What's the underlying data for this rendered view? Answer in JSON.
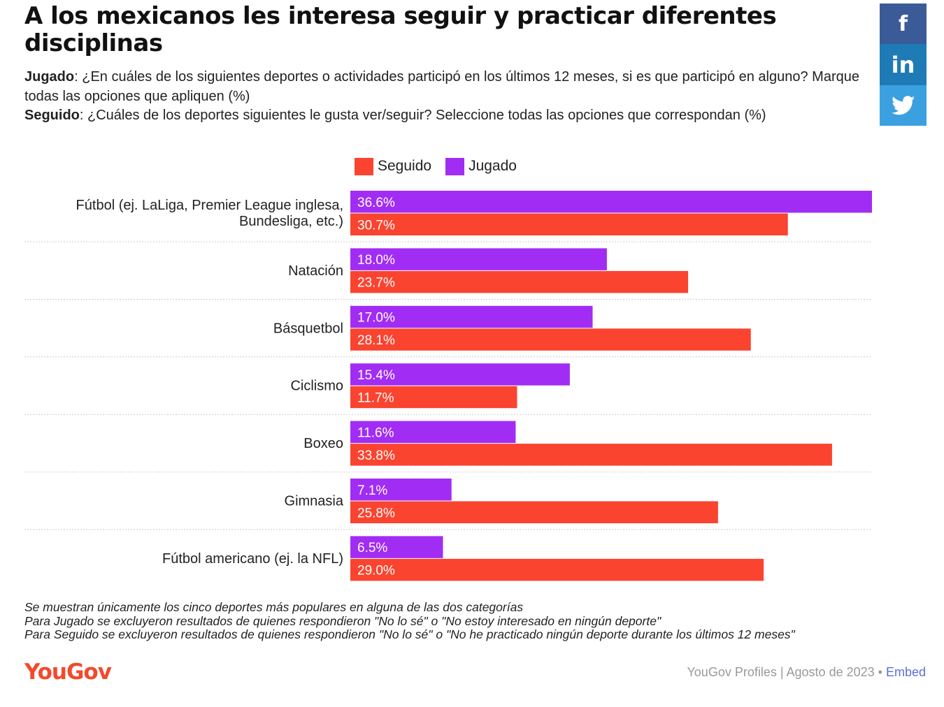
{
  "title": "A los mexicanos les interesa seguir y practicar diferentes disciplinas",
  "subtitle": {
    "jugado_label": "Jugado",
    "jugado_text": ": ¿En cuáles de los siguientes deportes o actividades participó en los últimos 12 meses, si es que participó en alguno? Marque todas las opciones que apliquen (%)",
    "seguido_label": "Seguido",
    "seguido_text": ": ¿Cuáles de los deportes siguientes le gusta ver/seguir? Seleccione todas las opciones que correspondan (%)"
  },
  "share": {
    "facebook_icon": "f",
    "linkedin_icon": "in",
    "twitter_icon": "twitter-bird"
  },
  "colors": {
    "seguido": "#fa4430",
    "jugado": "#a12df4",
    "gridline": "#cccccc"
  },
  "chart_data": {
    "type": "bar",
    "orientation": "horizontal",
    "categories": [
      "Fútbol (ej. LaLiga, Premier League inglesa, Bundesliga, etc.)",
      "Natación",
      "Básquetbol",
      "Ciclismo",
      "Boxeo",
      "Gimnasia",
      "Fútbol americano (ej. la NFL)"
    ],
    "series": [
      {
        "name": "Jugado",
        "values": [
          36.6,
          18.0,
          17.0,
          15.4,
          11.6,
          7.1,
          6.5
        ]
      },
      {
        "name": "Seguido",
        "values": [
          30.7,
          23.7,
          28.1,
          11.7,
          33.8,
          25.8,
          29.0
        ]
      }
    ],
    "value_labels": {
      "Jugado": [
        "36.6%",
        "18.0%",
        "17.0%",
        "15.4%",
        "11.6%",
        "7.1%",
        "6.5%"
      ],
      "Seguido": [
        "30.7%",
        "23.7%",
        "28.1%",
        "11.7%",
        "33.8%",
        "25.8%",
        "29.0%"
      ]
    },
    "legend": [
      "Seguido",
      "Jugado"
    ],
    "legend_position": "top-center",
    "xlim": [
      0,
      36.6
    ],
    "grid": false
  },
  "footnotes": [
    "Se muestran únicamente los cinco deportes más populares en alguna de las dos categorías",
    "Para Jugado se excluyeron resultados de quienes respondieron \"No lo sé\" o \"No estoy interesado en ningún deporte\"",
    "Para Seguido se excluyeron resultados de quienes respondieron \"No lo sé\" o \"No he practicado ningún deporte durante los últimos 12 meses\""
  ],
  "footer": {
    "logo": "YouGov",
    "source": "YouGov Profiles | Agosto de 2023",
    "separator": " • ",
    "embed": "Embed"
  }
}
